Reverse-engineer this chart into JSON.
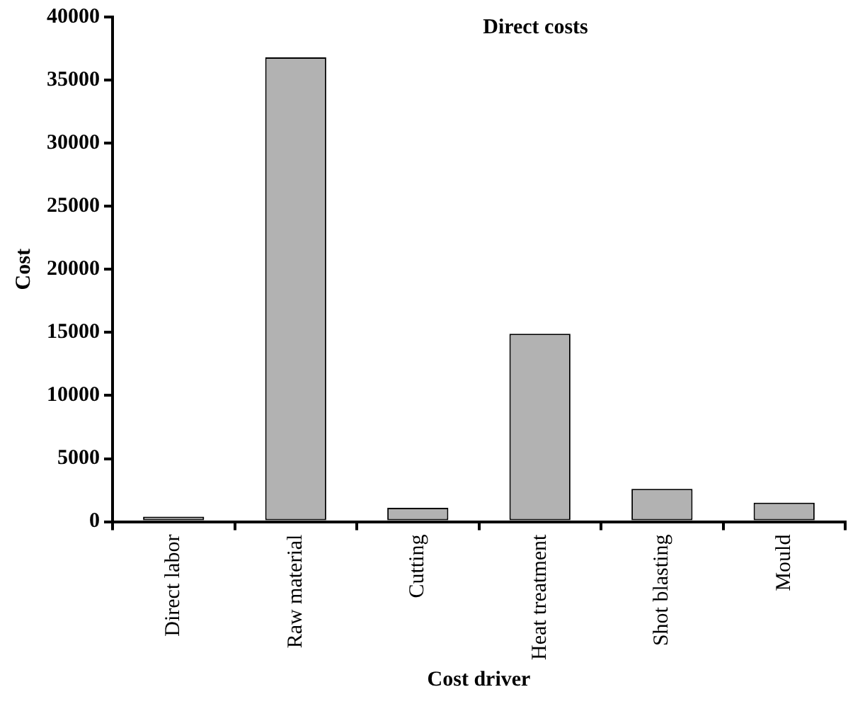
{
  "chart_data": {
    "type": "bar",
    "title": "Direct costs",
    "xlabel": "Cost driver",
    "ylabel": "Cost",
    "categories": [
      "Direct labor",
      "Raw material",
      "Cutting",
      "Heat treatment",
      "Shot blasting",
      "Mould"
    ],
    "values": [
      400,
      36800,
      1100,
      14900,
      2600,
      1500
    ],
    "color": "#b2b2b2",
    "ylim": [
      0,
      40000
    ],
    "yticks": [
      0,
      5000,
      10000,
      15000,
      20000,
      25000,
      30000,
      35000,
      40000
    ],
    "grid": false,
    "legend": false
  }
}
